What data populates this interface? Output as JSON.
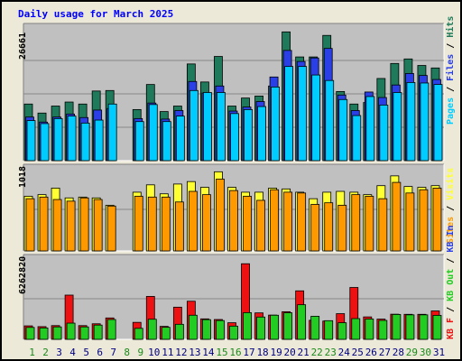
{
  "title": "Daily usage for March 2025",
  "legend_top": {
    "pages": "Pages",
    "files": "Files",
    "hits": "Hits",
    "sep": " / "
  },
  "legend_mid": {
    "visits": "Visits",
    "sites": "Sites"
  },
  "legend_bot": {
    "in": "KB In",
    "out": "KB Out",
    "kbf": "KB F"
  },
  "colors": {
    "hits": "#1e7a5a",
    "files": "#2a3fe6",
    "pages": "#00ccff",
    "visits": "#ffff33",
    "sites": "#ff9900",
    "kbin": "#ee1111",
    "kbout": "#22cc22",
    "plot_bg": "#c0c0c0",
    "weekend": "#1a8a1a",
    "weekday": "#0000cc"
  },
  "chart_data": [
    {
      "type": "bar",
      "name": "top",
      "y_max_label": "26661",
      "ylim": [
        0,
        26661
      ],
      "categories": [
        "1",
        "2",
        "3",
        "4",
        "5",
        "6",
        "7",
        "8",
        "9",
        "10",
        "11",
        "12",
        "13",
        "14",
        "15",
        "16",
        "17",
        "18",
        "19",
        "20",
        "21",
        "22",
        "23",
        "24",
        "25",
        "26",
        "27",
        "28",
        "29",
        "30",
        "31"
      ],
      "series": [
        {
          "name": "Hits",
          "values": [
            11300,
            9500,
            10900,
            11700,
            11300,
            13900,
            14000,
            0,
            10200,
            15200,
            9800,
            10900,
            19300,
            15700,
            20800,
            10900,
            12500,
            12900,
            14900,
            25700,
            20700,
            20700,
            25000,
            13800,
            11300,
            11600,
            16400,
            19400,
            20300,
            19000,
            18500
          ]
        },
        {
          "name": "Files",
          "values": [
            8700,
            7700,
            8700,
            9300,
            8600,
            10100,
            10400,
            0,
            8400,
            11500,
            8300,
            10000,
            15800,
            13500,
            14900,
            9900,
            10700,
            11800,
            16700,
            22000,
            19800,
            20500,
            22400,
            13100,
            10000,
            13700,
            12600,
            15100,
            17400,
            17000,
            16200
          ]
        },
        {
          "name": "Pages",
          "values": [
            8000,
            7400,
            8400,
            8900,
            7500,
            8100,
            11300,
            0,
            7800,
            11200,
            7800,
            8900,
            14000,
            13600,
            13600,
            9400,
            10200,
            10800,
            14700,
            18800,
            18800,
            17100,
            16000,
            12200,
            9000,
            12800,
            11100,
            13600,
            15600,
            15500,
            15200
          ]
        }
      ]
    },
    {
      "type": "bar",
      "name": "middle",
      "y_max_label": "1018",
      "ylim": [
        0,
        1018
      ],
      "categories": [
        "1",
        "2",
        "3",
        "4",
        "5",
        "6",
        "7",
        "8",
        "9",
        "10",
        "11",
        "12",
        "13",
        "14",
        "15",
        "16",
        "17",
        "18",
        "19",
        "20",
        "21",
        "22",
        "23",
        "24",
        "25",
        "26",
        "27",
        "28",
        "29",
        "30",
        "31"
      ],
      "series": [
        {
          "name": "Visits",
          "values": [
            670,
            690,
            770,
            650,
            660,
            650,
            560,
            0,
            720,
            810,
            700,
            820,
            850,
            780,
            970,
            780,
            720,
            720,
            770,
            760,
            720,
            640,
            720,
            730,
            720,
            690,
            800,
            920,
            790,
            780,
            800
          ]
        },
        {
          "name": "Sites",
          "values": [
            640,
            660,
            630,
            610,
            650,
            630,
            550,
            0,
            670,
            660,
            660,
            600,
            730,
            690,
            880,
            740,
            670,
            620,
            750,
            720,
            710,
            570,
            590,
            560,
            690,
            670,
            640,
            840,
            710,
            750,
            770
          ]
        }
      ]
    },
    {
      "type": "bar",
      "name": "bottom",
      "y_max_label": "6262820",
      "ylim": [
        0,
        6262820
      ],
      "categories": [
        "1",
        "2",
        "3",
        "4",
        "5",
        "6",
        "7",
        "8",
        "9",
        "10",
        "11",
        "12",
        "13",
        "14",
        "15",
        "16",
        "17",
        "18",
        "19",
        "20",
        "21",
        "22",
        "23",
        "24",
        "25",
        "26",
        "27",
        "28",
        "29",
        "30",
        "31"
      ],
      "series": [
        {
          "name": "KB In",
          "values": [
            1040000,
            980000,
            1060000,
            3410000,
            1060000,
            1200000,
            1650000,
            0,
            1310000,
            3310000,
            1000000,
            2480000,
            2940000,
            1580000,
            1530000,
            1280000,
            5830000,
            2040000,
            1870000,
            2130000,
            3740000,
            1470000,
            1410000,
            1980000,
            4000000,
            1730000,
            1560000,
            1940000,
            1930000,
            1930000,
            2190000
          ]
        },
        {
          "name": "KB Out",
          "values": [
            920000,
            880000,
            960000,
            1250000,
            960000,
            1100000,
            1530000,
            0,
            850000,
            1550000,
            930000,
            1160000,
            1860000,
            1520000,
            1450000,
            1020000,
            2060000,
            1720000,
            1860000,
            2050000,
            2670000,
            1780000,
            1440000,
            1280000,
            1600000,
            1570000,
            1460000,
            1920000,
            1890000,
            1890000,
            1850000
          ]
        }
      ]
    }
  ]
}
